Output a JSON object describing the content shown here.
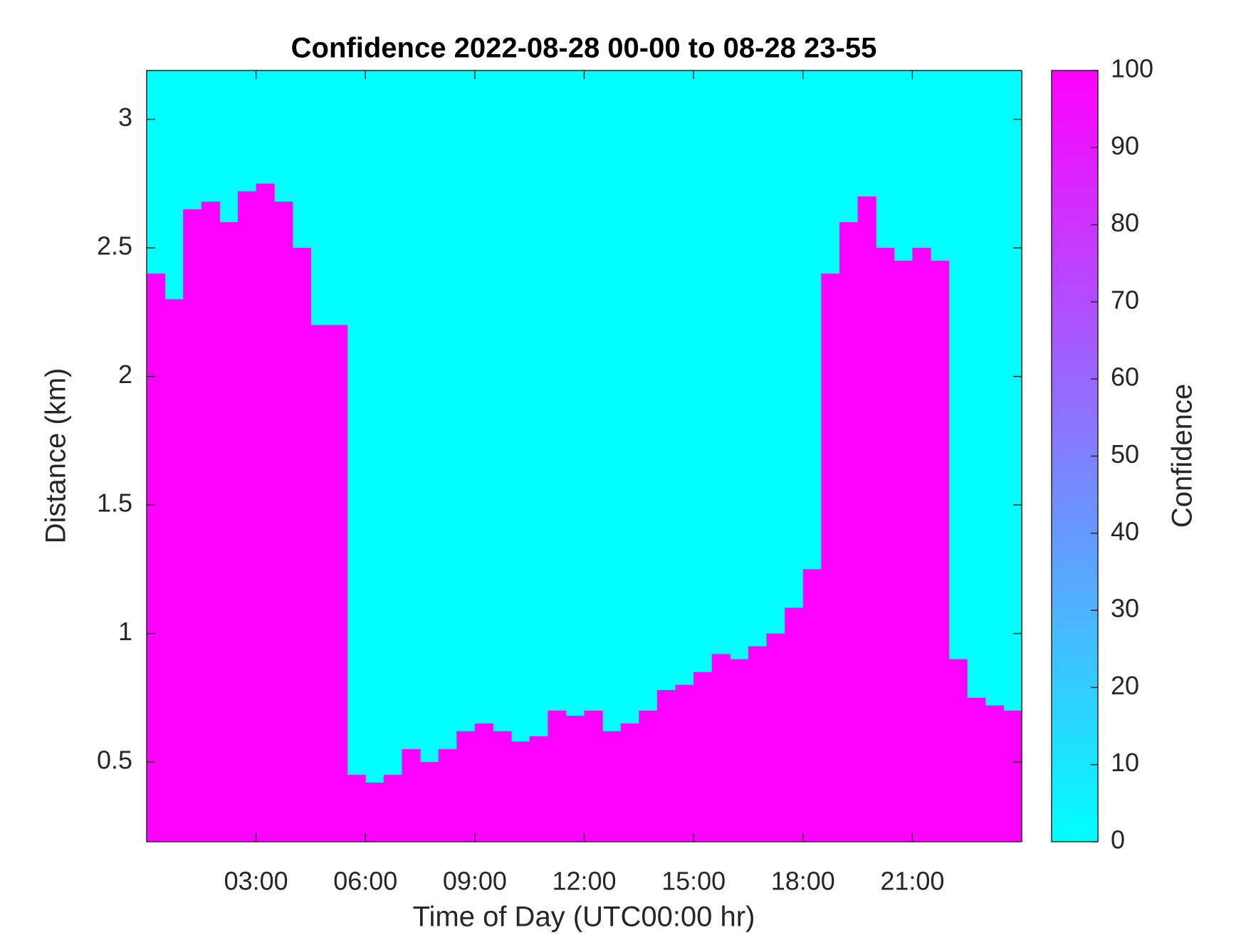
{
  "chart_data": {
    "type": "heatmap",
    "title": "Confidence 2022-08-28 00-00 to 08-28 23-55",
    "x_label": "Time of Day (UTC00:00 hr)",
    "y_label": "Distance (km)",
    "x": [
      0.25,
      0.75,
      1.25,
      1.75,
      2.25,
      2.75,
      3.25,
      3.75,
      4.25,
      4.75,
      5.25,
      5.75,
      6.25,
      6.75,
      7.25,
      7.75,
      8.25,
      8.75,
      9.25,
      9.75,
      10.25,
      10.75,
      11.25,
      11.75,
      12.25,
      12.75,
      13.25,
      13.75,
      14.25,
      14.75,
      15.25,
      15.75,
      16.25,
      16.75,
      17.25,
      17.75,
      18.25,
      18.75,
      19.25,
      19.75,
      20.25,
      20.75,
      21.25,
      21.75,
      22.25,
      22.75,
      23.25,
      23.75
    ],
    "values": [
      2.4,
      2.3,
      2.65,
      2.68,
      2.6,
      2.72,
      2.75,
      2.68,
      2.5,
      2.2,
      2.2,
      0.45,
      0.42,
      0.45,
      0.55,
      0.5,
      0.55,
      0.62,
      0.65,
      0.62,
      0.58,
      0.6,
      0.7,
      0.68,
      0.7,
      0.62,
      0.65,
      0.7,
      0.78,
      0.8,
      0.85,
      0.92,
      0.9,
      0.95,
      1.0,
      1.1,
      1.25,
      2.4,
      2.6,
      2.7,
      2.5,
      2.45,
      2.5,
      2.45,
      0.9,
      0.75,
      0.72,
      0.7
    ],
    "fill_value": 100,
    "empty_value": 0,
    "xlim": [
      0,
      24
    ],
    "xticks": [
      {
        "value": 3,
        "label": "03:00"
      },
      {
        "value": 6,
        "label": "06:00"
      },
      {
        "value": 9,
        "label": "09:00"
      },
      {
        "value": 12,
        "label": "12:00"
      },
      {
        "value": 15,
        "label": "15:00"
      },
      {
        "value": 18,
        "label": "18:00"
      },
      {
        "value": 21,
        "label": "21:00"
      }
    ],
    "ylim": [
      0.19,
      3.19
    ],
    "yticks": [
      0.5,
      1,
      1.5,
      2,
      2.5,
      3
    ],
    "colormap": [
      "#00ffff",
      "#ff00ff"
    ],
    "colorbar_label": "Confidence",
    "clim": [
      0,
      100
    ],
    "cticks": [
      0,
      10,
      20,
      30,
      40,
      50,
      60,
      70,
      80,
      90,
      100
    ]
  }
}
